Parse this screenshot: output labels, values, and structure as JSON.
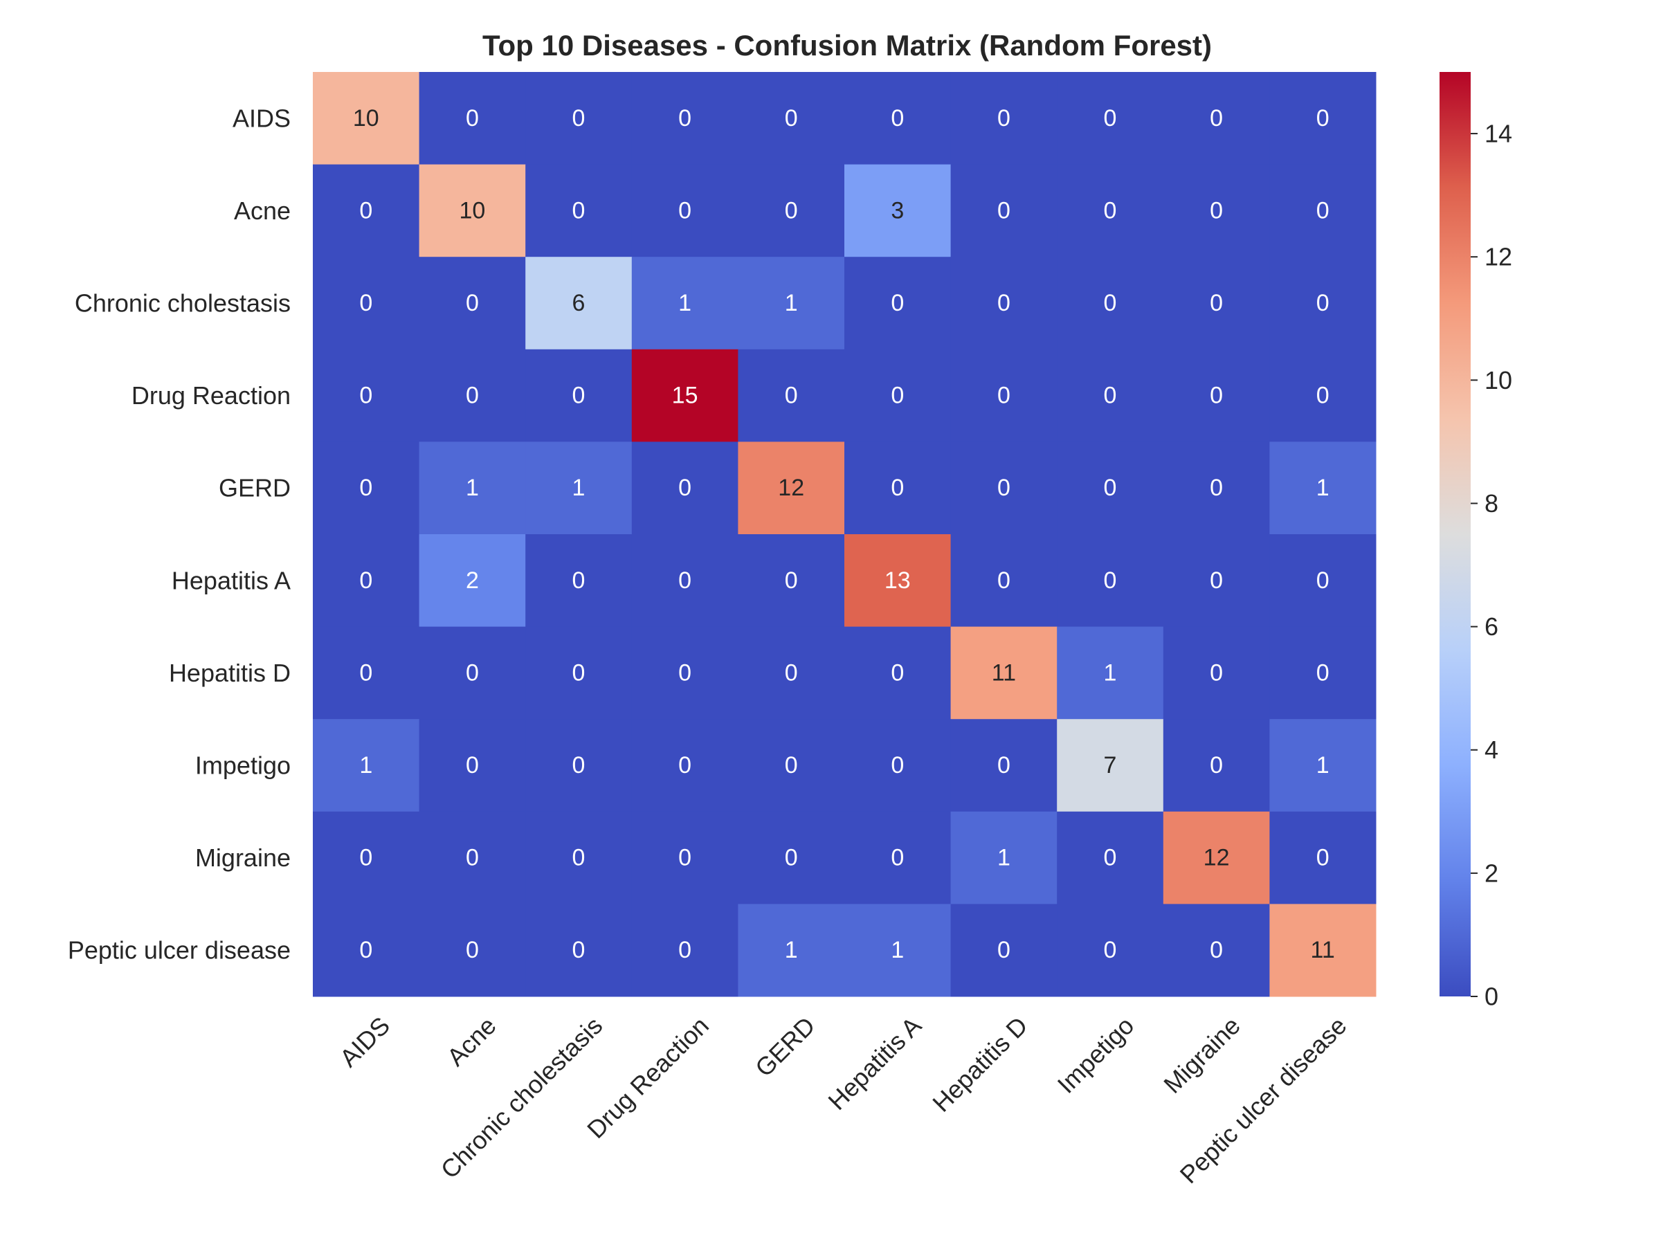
{
  "chart_data": {
    "type": "heatmap",
    "title": "Top 10 Diseases - Confusion Matrix (Random Forest)",
    "xlabel": "",
    "ylabel": "",
    "row_labels": [
      "AIDS",
      "Acne",
      "Chronic cholestasis",
      "Drug Reaction",
      "GERD",
      "Hepatitis A",
      "Hepatitis D",
      "Impetigo",
      "Migraine",
      "Peptic ulcer disease"
    ],
    "col_labels": [
      "AIDS",
      "Acne",
      "Chronic cholestasis",
      "Drug Reaction",
      "GERD",
      "Hepatitis A",
      "Hepatitis D",
      "Impetigo",
      "Migraine",
      "Peptic ulcer disease"
    ],
    "values": [
      [
        10,
        0,
        0,
        0,
        0,
        0,
        0,
        0,
        0,
        0
      ],
      [
        0,
        10,
        0,
        0,
        0,
        3,
        0,
        0,
        0,
        0
      ],
      [
        0,
        0,
        6,
        1,
        1,
        0,
        0,
        0,
        0,
        0
      ],
      [
        0,
        0,
        0,
        15,
        0,
        0,
        0,
        0,
        0,
        0
      ],
      [
        0,
        1,
        1,
        0,
        12,
        0,
        0,
        0,
        0,
        1
      ],
      [
        0,
        2,
        0,
        0,
        0,
        13,
        0,
        0,
        0,
        0
      ],
      [
        0,
        0,
        0,
        0,
        0,
        0,
        11,
        1,
        0,
        0
      ],
      [
        1,
        0,
        0,
        0,
        0,
        0,
        0,
        7,
        0,
        1
      ],
      [
        0,
        0,
        0,
        0,
        0,
        0,
        1,
        0,
        12,
        0
      ],
      [
        0,
        0,
        0,
        0,
        1,
        1,
        0,
        0,
        0,
        11
      ]
    ],
    "colormap": "coolwarm",
    "vmin": 0,
    "vmax": 15,
    "colorbar_ticks": [
      0,
      2,
      4,
      6,
      8,
      10,
      12,
      14
    ],
    "annotated": true,
    "grid": false,
    "x_tick_rotation": 45
  }
}
